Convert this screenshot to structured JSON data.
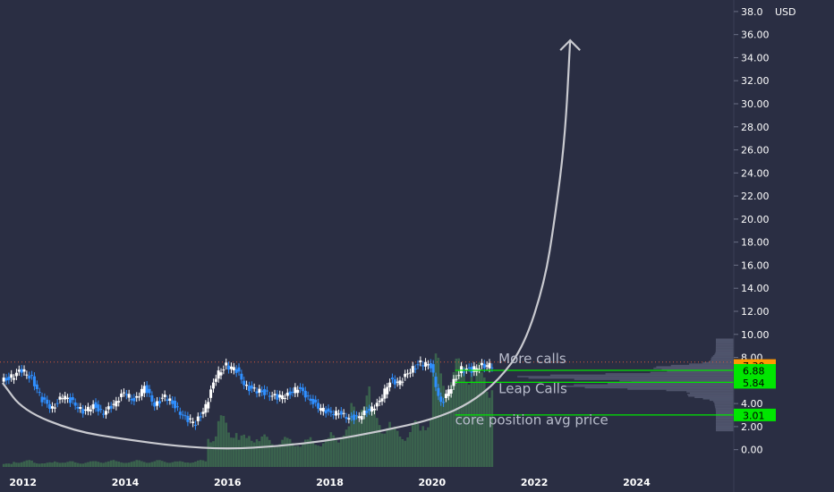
{
  "chart_data": {
    "type": "candlestick",
    "unit": "USD",
    "ylim": [
      -1.5,
      39
    ],
    "y_ticks": [
      0,
      2,
      4,
      6,
      8,
      10,
      12,
      14,
      16,
      18,
      20,
      22,
      24,
      26,
      28,
      30,
      32,
      34,
      36,
      38
    ],
    "y_tick_labels": [
      "0.00",
      "2.00",
      "4.00",
      "6.00",
      "8.00",
      "10.00",
      "12.00",
      "14.00",
      "16.00",
      "18.00",
      "20.00",
      "22.00",
      "24.00",
      "26.00",
      "28.00",
      "30.00",
      "32.00",
      "34.00",
      "36.00",
      "38.0"
    ],
    "xlim": [
      2011.55,
      2025.9
    ],
    "x_ticks": [
      2012,
      2014,
      2016,
      2018,
      2020,
      2022,
      2024
    ],
    "x_tick_labels": [
      "2012",
      "2014",
      "2016",
      "2018",
      "2020",
      "2022",
      "2024"
    ],
    "grid": false,
    "series": [
      {
        "x": [
          2011.6,
          2011.8,
          2012.0,
          2012.2,
          2012.4,
          2012.6,
          2012.8,
          2013.0,
          2013.2,
          2013.4,
          2013.6,
          2013.8,
          2014.0,
          2014.2,
          2014.4,
          2014.6,
          2014.8,
          2015.0,
          2015.2,
          2015.4,
          2015.6,
          2015.8,
          2016.0,
          2016.2,
          2016.4,
          2016.6,
          2016.8,
          2017.0,
          2017.2,
          2017.4,
          2017.6,
          2017.8,
          2018.0,
          2018.2,
          2018.4,
          2018.6,
          2018.8,
          2019.0,
          2019.2,
          2019.4,
          2019.6,
          2019.8,
          2020.0,
          2020.2,
          2020.4,
          2020.6,
          2020.8,
          2021.0
        ],
        "close": [
          6.3,
          6.9,
          6.2,
          4.3,
          3.6,
          4.6,
          4.2,
          3.2,
          3.9,
          3.1,
          4.0,
          4.9,
          4.3,
          5.4,
          3.9,
          4.6,
          3.8,
          2.7,
          2.3,
          3.7,
          6.4,
          7.3,
          6.9,
          5.4,
          5.1,
          4.9,
          4.5,
          4.8,
          5.3,
          4.6,
          3.6,
          3.3,
          3.1,
          2.8,
          2.8,
          3.5,
          4.1,
          6.0,
          5.8,
          6.9,
          7.5,
          7.3,
          3.9,
          5.5,
          7.0,
          6.9,
          7.3,
          7.3
        ]
      }
    ],
    "volume": [
      0.03,
      0.05,
      0.06,
      0.04,
      0.04,
      0.05,
      0.05,
      0.04,
      0.05,
      0.05,
      0.06,
      0.05,
      0.05,
      0.06,
      0.05,
      0.06,
      0.05,
      0.05,
      0.05,
      0.06,
      0.3,
      0.45,
      0.35,
      0.28,
      0.3,
      0.28,
      0.25,
      0.26,
      0.25,
      0.24,
      0.26,
      0.25,
      0.3,
      0.35,
      0.55,
      0.7,
      0.5,
      0.4,
      0.35,
      0.32,
      0.4,
      0.45,
      0.98,
      0.85,
      0.95,
      1.0,
      0.9,
      0.85
    ],
    "price_labels": [
      {
        "value": "7.30",
        "y": 7.3,
        "color": "#ff9800",
        "text_color": "#000000"
      },
      {
        "value": "6.88",
        "y": 6.88,
        "color": "#00e600",
        "text_color": "#000000"
      },
      {
        "value": "5.84",
        "y": 5.84,
        "color": "#00e600",
        "text_color": "#000000"
      },
      {
        "value": "3.01",
        "y": 3.01,
        "color": "#00e600",
        "text_color": "#000000"
      }
    ],
    "annotations": [
      {
        "text": "More calls",
        "x": 2021.3,
        "y": 7.5
      },
      {
        "text": "Leap Calls",
        "x": 2021.3,
        "y": 4.9
      },
      {
        "text": "core position avg price",
        "x": 2020.45,
        "y": 2.2
      }
    ],
    "projection_curve": [
      [
        2011.6,
        5.8
      ],
      [
        2012.0,
        3.4
      ],
      [
        2013.0,
        1.6
      ],
      [
        2014.0,
        0.9
      ],
      [
        2015.0,
        0.3
      ],
      [
        2016.0,
        0.05
      ],
      [
        2017.0,
        0.3
      ],
      [
        2018.0,
        0.8
      ],
      [
        2019.0,
        1.6
      ],
      [
        2020.0,
        2.6
      ],
      [
        2020.7,
        3.9
      ],
      [
        2021.3,
        6.0
      ],
      [
        2021.8,
        9.0
      ],
      [
        2022.2,
        14.5
      ],
      [
        2022.4,
        20.0
      ],
      [
        2022.6,
        27.0
      ],
      [
        2022.7,
        35.5
      ]
    ]
  },
  "colors": {
    "background": "#2a2e43",
    "axis_text": "#ffffff",
    "up": "#ffffff",
    "down": "#2f8fff",
    "volume": "#3d6b4f",
    "profile": "#565b73",
    "curve": "#c9cad0",
    "level_line": "#00e600",
    "dotted_line": "#d6573a"
  }
}
